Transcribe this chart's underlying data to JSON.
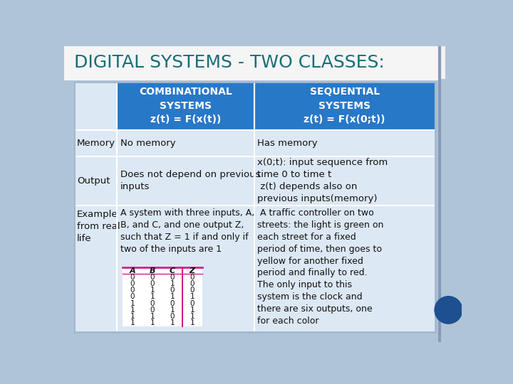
{
  "title": "DIGITAL SYSTEMS - TWO CLASSES:",
  "title_color": "#1a6e78",
  "title_fontsize": 18,
  "bg_outer": "#b0c4d8",
  "bg_white_top": "#f0f0f0",
  "bg_main": "#dce8f4",
  "header_bg": "#2878c8",
  "header_text_color": "#ffffff",
  "cell_bg": "#dce8f4",
  "border_color": "#ffffff",
  "col1_header": "COMBINATIONAL\nSYSTEMS\nz(t) = F(x(t))",
  "col2_header": "SEQUENTIAL\nSYSTEMS\nz(t) = F(x(0;t))",
  "row_labels": [
    "Memory",
    "Output",
    "Example\nfrom real\nlife"
  ],
  "col1_cells": [
    "No memory",
    "Does not depend on previous\ninputs",
    "A system with three inputs, A,\nB, and C, and one output Z,\nsuch that Z = 1 if and only if\ntwo of the inputs are 1"
  ],
  "col2_cells": [
    "Has memory",
    "x(0;t): input sequence from\ntime 0 to time t\n z(t) depends also on\nprevious inputs(memory)",
    " A traffic controller on two\nstreets: the light is green on\neach street for a fixed\nperiod of time, then goes to\nyellow for another fixed\nperiod and finally to red.\nThe only input to this\nsystem is the clock and\nthere are six outputs, one\nfor each color"
  ],
  "truth_table_headers": [
    "A",
    "B",
    "C",
    "Z"
  ],
  "truth_table_data": [
    [
      0,
      0,
      0,
      0
    ],
    [
      0,
      0,
      1,
      0
    ],
    [
      0,
      1,
      0,
      0
    ],
    [
      0,
      1,
      1,
      1
    ],
    [
      1,
      0,
      0,
      0
    ],
    [
      1,
      0,
      1,
      1
    ],
    [
      1,
      1,
      0,
      1
    ],
    [
      1,
      1,
      1,
      1
    ]
  ],
  "truth_table_header_color": "#d0208a",
  "circle_color": "#1e5090",
  "right_border_color": "#8899bb",
  "line_color": "#a0b8d0"
}
